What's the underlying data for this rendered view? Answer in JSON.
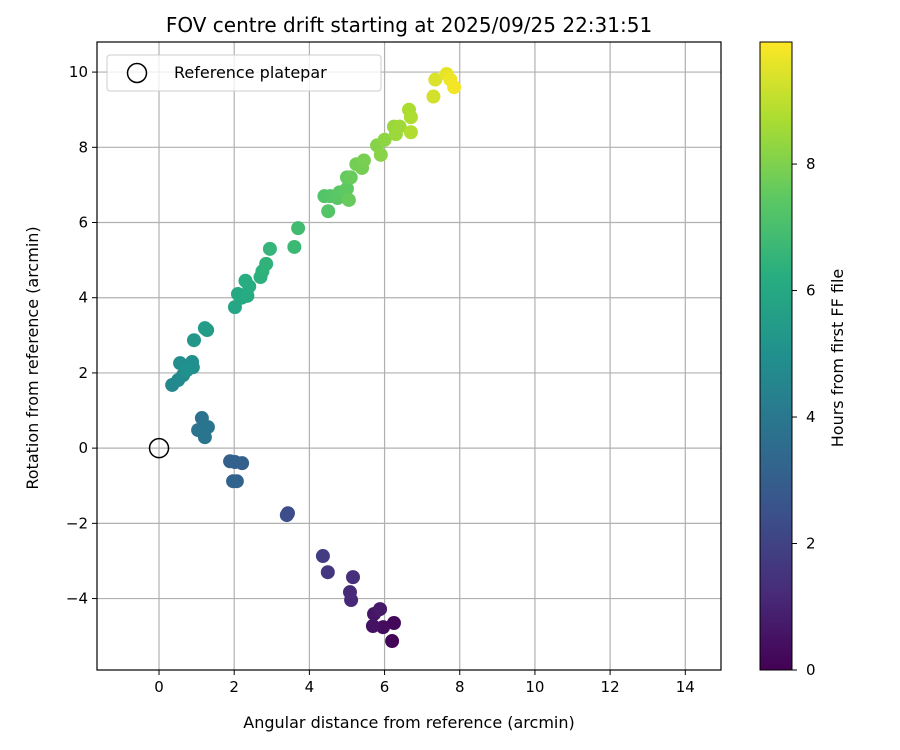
{
  "chart_data": {
    "type": "scatter",
    "title": "FOV centre drift starting at 2025/09/25 22:31:51",
    "xlabel": "Angular distance from reference (arcmin)",
    "ylabel": "Rotation from reference (arcmin)",
    "colorbar_label": "Hours from first FF file",
    "xlim": [
      -1.65,
      14.95
    ],
    "ylim": [
      -5.9,
      10.8
    ],
    "clim": [
      0,
      9.93
    ],
    "grid": true,
    "xticks": [
      0,
      2,
      4,
      6,
      8,
      10,
      12,
      14
    ],
    "yticks": [
      -4,
      -2,
      0,
      2,
      4,
      6,
      8,
      10
    ],
    "cticks": [
      0,
      2,
      4,
      6,
      8
    ],
    "colormap": [
      "#440154",
      "#472c7a",
      "#3b518b",
      "#2c718e",
      "#21908d",
      "#27ad81",
      "#5cc863",
      "#aadc32",
      "#fde725"
    ],
    "legend": {
      "label": "Reference platepar",
      "placement": "top-left"
    },
    "reference_point": [
      0,
      0
    ],
    "points": [
      [
        6.2,
        -5.13,
        0.1
      ],
      [
        6.25,
        -4.65,
        0.2
      ],
      [
        5.96,
        -4.76,
        0.3
      ],
      [
        5.69,
        -4.73,
        0.45
      ],
      [
        5.72,
        -4.41,
        0.6
      ],
      [
        5.88,
        -4.28,
        0.7
      ],
      [
        5.11,
        -4.04,
        1.1
      ],
      [
        5.08,
        -3.83,
        1.2
      ],
      [
        5.16,
        -3.43,
        1.35
      ],
      [
        4.49,
        -3.3,
        1.6
      ],
      [
        4.36,
        -2.87,
        1.8
      ],
      [
        3.43,
        -1.73,
        2.3
      ],
      [
        3.4,
        -1.78,
        2.35
      ],
      [
        2.02,
        -0.37,
        3.0
      ],
      [
        2.21,
        -0.4,
        3.05
      ],
      [
        1.89,
        -0.35,
        3.1
      ],
      [
        2.07,
        -0.88,
        3.15
      ],
      [
        1.97,
        -0.88,
        3.2
      ],
      [
        1.17,
        0.53,
        3.7
      ],
      [
        1.14,
        0.8,
        3.75
      ],
      [
        1.04,
        0.48,
        3.8
      ],
      [
        1.22,
        0.29,
        3.85
      ],
      [
        1.3,
        0.56,
        3.9
      ],
      [
        0.35,
        1.68,
        4.6
      ],
      [
        0.51,
        1.81,
        4.7
      ],
      [
        0.64,
        1.94,
        4.75
      ],
      [
        0.56,
        2.26,
        4.85
      ],
      [
        0.88,
        2.29,
        4.9
      ],
      [
        0.9,
        2.15,
        4.95
      ],
      [
        0.74,
        2.07,
        5.0
      ],
      [
        0.93,
        2.87,
        5.3
      ],
      [
        1.28,
        3.14,
        5.45
      ],
      [
        1.22,
        3.19,
        5.5
      ],
      [
        2.02,
        3.75,
        5.9
      ],
      [
        2.1,
        4.1,
        6.0
      ],
      [
        2.2,
        4.0,
        6.05
      ],
      [
        2.35,
        4.05,
        6.1
      ],
      [
        2.4,
        4.3,
        6.15
      ],
      [
        2.3,
        4.45,
        6.2
      ],
      [
        2.7,
        4.55,
        6.35
      ],
      [
        2.75,
        4.7,
        6.4
      ],
      [
        2.85,
        4.9,
        6.45
      ],
      [
        2.95,
        5.3,
        6.55
      ],
      [
        3.6,
        5.35,
        6.7
      ],
      [
        3.7,
        5.85,
        6.85
      ],
      [
        4.4,
        6.7,
        7.2
      ],
      [
        4.5,
        6.3,
        7.25
      ],
      [
        4.55,
        6.7,
        7.3
      ],
      [
        4.75,
        6.65,
        7.35
      ],
      [
        4.8,
        6.8,
        7.4
      ],
      [
        4.95,
        6.75,
        7.45
      ],
      [
        5.0,
        6.9,
        7.5
      ],
      [
        5.0,
        7.2,
        7.55
      ],
      [
        5.05,
        6.6,
        7.6
      ],
      [
        5.1,
        7.2,
        7.65
      ],
      [
        5.25,
        7.55,
        7.8
      ],
      [
        5.4,
        7.45,
        7.85
      ],
      [
        5.45,
        7.65,
        7.9
      ],
      [
        5.8,
        8.05,
        8.1
      ],
      [
        5.9,
        7.8,
        8.15
      ],
      [
        6.0,
        8.2,
        8.25
      ],
      [
        6.25,
        8.55,
        8.4
      ],
      [
        6.3,
        8.35,
        8.45
      ],
      [
        6.4,
        8.55,
        8.5
      ],
      [
        6.65,
        9.0,
        8.7
      ],
      [
        6.7,
        8.8,
        8.75
      ],
      [
        6.7,
        8.4,
        8.8
      ],
      [
        7.3,
        9.35,
        9.3
      ],
      [
        7.35,
        9.8,
        9.4
      ],
      [
        7.65,
        9.95,
        9.6
      ],
      [
        7.75,
        9.8,
        9.7
      ],
      [
        7.85,
        9.6,
        9.8
      ]
    ]
  }
}
